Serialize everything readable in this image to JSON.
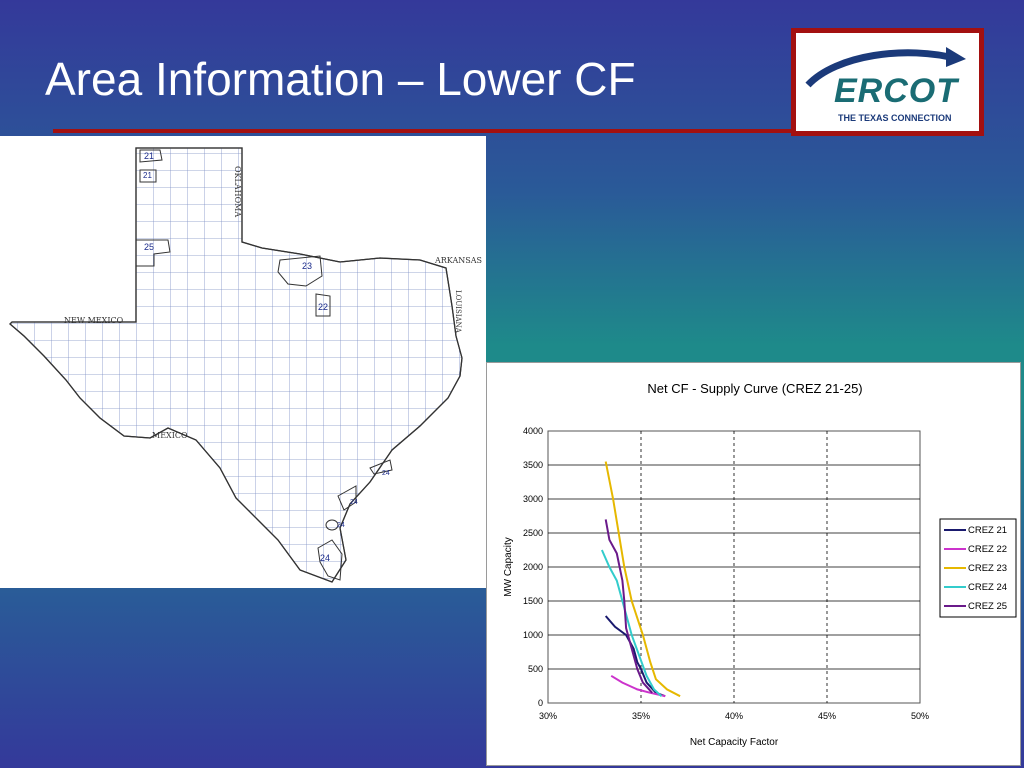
{
  "slide": {
    "title": "Area Information – Lower CF"
  },
  "logo": {
    "name": "ERCOT",
    "tagline": "THE TEXAS CONNECTION",
    "color_primary": "#1a6c74",
    "color_arc": "#1b3a7a"
  },
  "map": {
    "labels": {
      "oklahoma": "OKLAHOMA",
      "arkansas": "ARKANSAS",
      "louisiana": "LOUISIANA",
      "new_mexico": "NEW MEXICO",
      "mexico": "MEXICO"
    },
    "crez_numbers": [
      "21",
      "21",
      "25",
      "23",
      "22",
      "24",
      "24",
      "24",
      "24"
    ]
  },
  "chart_data": {
    "type": "line",
    "title": "Net CF - Supply Curve (CREZ 21-25)",
    "xlabel": "Net Capacity Factor",
    "ylabel": "MW Capacity",
    "xlim": [
      30,
      50
    ],
    "ylim": [
      0,
      4000
    ],
    "x_ticks": [
      "30%",
      "35%",
      "40%",
      "45%",
      "50%"
    ],
    "y_ticks": [
      "0",
      "500",
      "1000",
      "1500",
      "2000",
      "2500",
      "3000",
      "3500",
      "4000"
    ],
    "grid": "horizontal solid, vertical dashed",
    "legend": "right",
    "series": [
      {
        "name": "CREZ 21",
        "color": "#1a1a6e",
        "points": [
          [
            33.1,
            1280
          ],
          [
            33.6,
            1120
          ],
          [
            34.2,
            1000
          ],
          [
            34.6,
            800
          ],
          [
            34.8,
            600
          ],
          [
            35.0,
            500
          ],
          [
            35.3,
            300
          ],
          [
            35.8,
            150
          ],
          [
            36.3,
            100
          ]
        ]
      },
      {
        "name": "CREZ 22",
        "color": "#cc33cc",
        "points": [
          [
            33.4,
            400
          ],
          [
            34.0,
            300
          ],
          [
            34.8,
            200
          ],
          [
            35.5,
            150
          ],
          [
            36.3,
            100
          ]
        ]
      },
      {
        "name": "CREZ 23",
        "color": "#e6b800",
        "points": [
          [
            33.1,
            3550
          ],
          [
            33.5,
            3000
          ],
          [
            33.8,
            2500
          ],
          [
            34.1,
            2000
          ],
          [
            34.5,
            1500
          ],
          [
            35.1,
            1000
          ],
          [
            35.5,
            600
          ],
          [
            35.8,
            350
          ],
          [
            36.4,
            200
          ],
          [
            37.1,
            100
          ]
        ]
      },
      {
        "name": "CREZ 24",
        "color": "#33cccc",
        "points": [
          [
            32.9,
            2250
          ],
          [
            33.3,
            2000
          ],
          [
            33.7,
            1800
          ],
          [
            34.1,
            1400
          ],
          [
            34.5,
            1000
          ],
          [
            34.9,
            700
          ],
          [
            35.3,
            400
          ],
          [
            35.7,
            200
          ],
          [
            36.1,
            100
          ]
        ]
      },
      {
        "name": "CREZ 25",
        "color": "#6a1a8a",
        "points": [
          [
            33.1,
            2700
          ],
          [
            33.3,
            2400
          ],
          [
            33.7,
            2200
          ],
          [
            34.0,
            1800
          ],
          [
            34.1,
            1500
          ],
          [
            34.2,
            1100
          ],
          [
            34.5,
            800
          ],
          [
            34.8,
            500
          ],
          [
            35.1,
            300
          ],
          [
            35.6,
            150
          ]
        ]
      }
    ]
  }
}
